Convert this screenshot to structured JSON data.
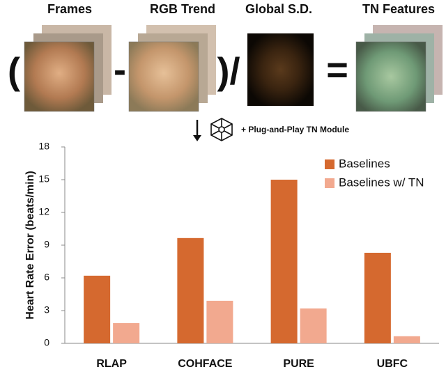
{
  "diagram": {
    "frames_label": "Frames",
    "trend_label": "RGB Trend",
    "sd_label": "Global S.D.",
    "features_label": "TN Features",
    "open_paren": "(",
    "minus": "-",
    "close_divide": ")/",
    "equals": "=",
    "module_label": "+ Plug-and-Play TN Module"
  },
  "chart_data": {
    "type": "bar",
    "ylabel": "Heart Rate Error (beats/min)",
    "categories": [
      "RLAP",
      "COHFACE",
      "PURE",
      "UBFC"
    ],
    "series": [
      {
        "name": "Baselines",
        "color": "#d5692f",
        "values": [
          6.2,
          9.65,
          15.0,
          8.3
        ]
      },
      {
        "name": "Baselines w/ TN",
        "color": "#f2a98f",
        "values": [
          1.85,
          3.9,
          3.2,
          0.65
        ]
      }
    ],
    "ylim": [
      0,
      18
    ],
    "yticks": [
      0,
      3,
      6,
      9,
      12,
      15,
      18
    ],
    "legend": "upper-right"
  }
}
